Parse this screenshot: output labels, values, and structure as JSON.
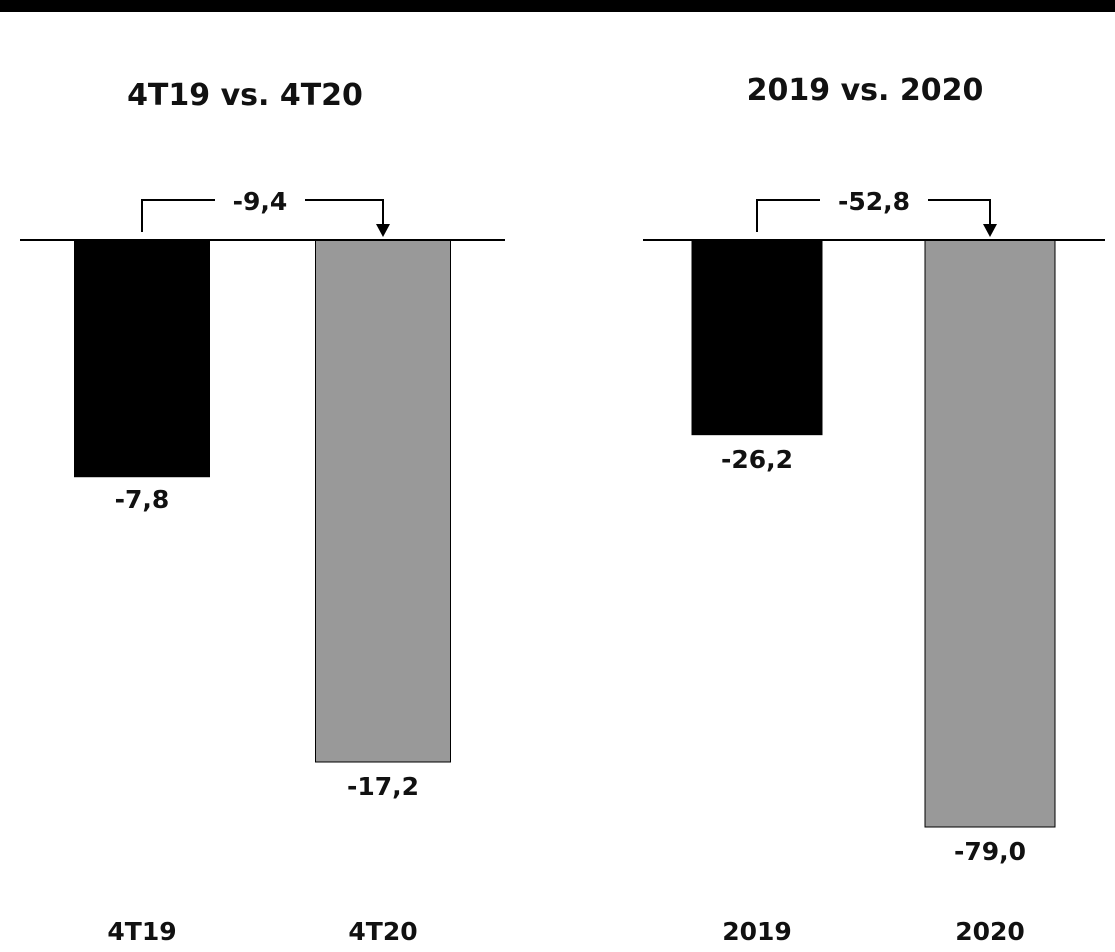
{
  "chart_data": [
    {
      "type": "bar",
      "title": "4T19 vs. 4T20",
      "categories": [
        "4T19",
        "4T20"
      ],
      "values": [
        -7.8,
        -17.2
      ],
      "value_labels": [
        "-7,8",
        "-17,2"
      ],
      "colors": [
        "#000000",
        "#999999"
      ],
      "change_label": "-9,4",
      "ylim": [
        -17.2,
        0
      ],
      "grid": false
    },
    {
      "type": "bar",
      "title": "2019 vs. 2020",
      "categories": [
        "2019",
        "2020"
      ],
      "values": [
        -26.2,
        -79.0
      ],
      "value_labels": [
        "-26,2",
        "-79,0"
      ],
      "colors": [
        "#000000",
        "#999999"
      ],
      "change_label": "-52,8",
      "ylim": [
        -79.0,
        0
      ],
      "grid": false
    }
  ]
}
